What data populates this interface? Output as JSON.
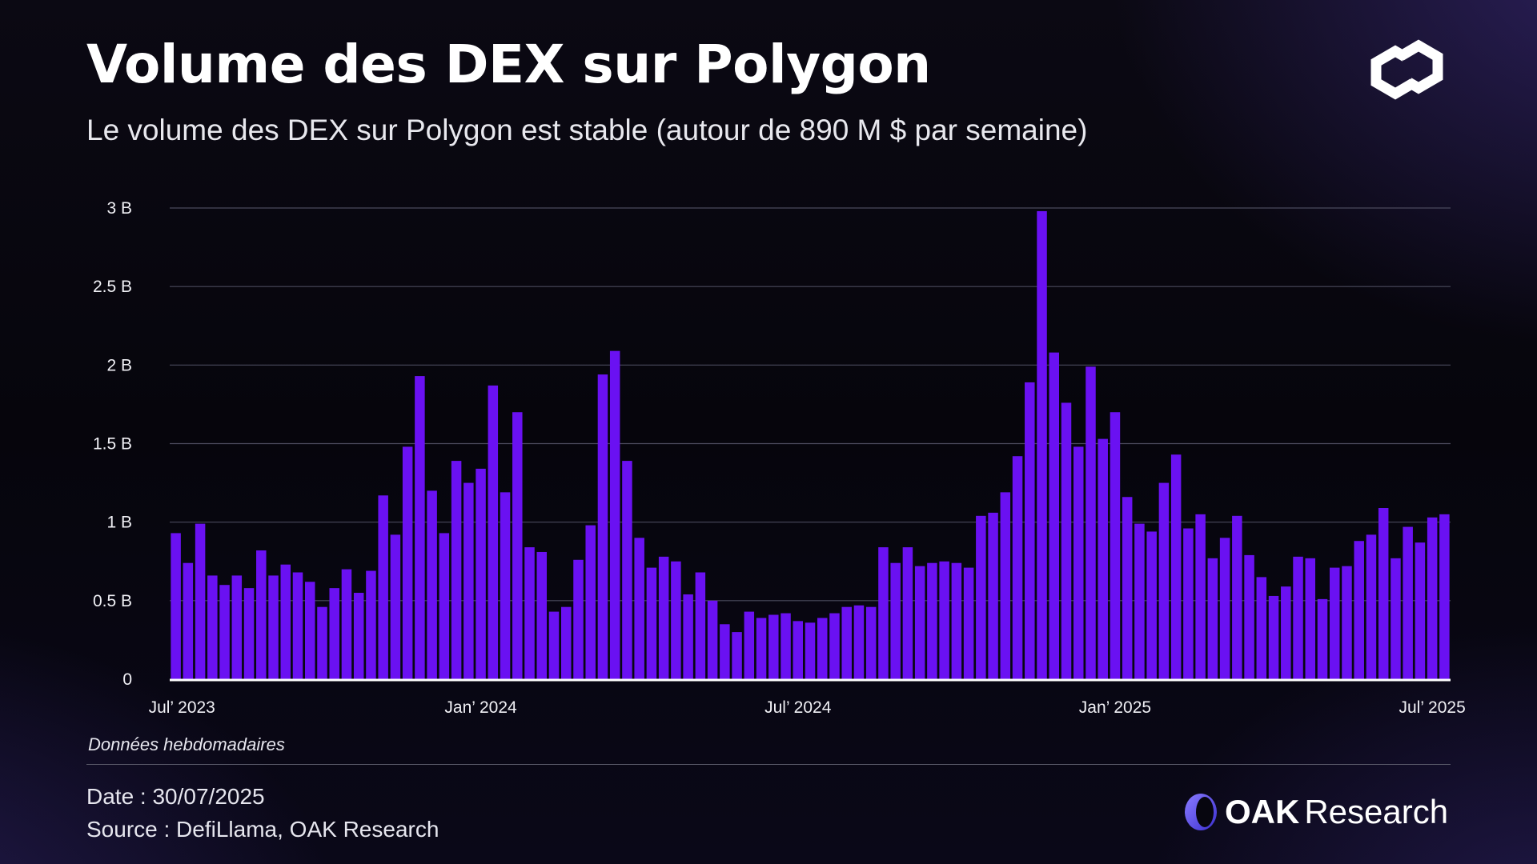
{
  "header": {
    "title": "Volume des DEX sur Polygon",
    "subtitle": "Le volume des DEX sur Polygon est stable (autour de 890 M $ par semaine)"
  },
  "caption": "Données hebdomadaires",
  "footer": {
    "date": "Date : 30/07/2025",
    "source": "Source : DefiLlama, OAK Research"
  },
  "brand": {
    "word1": "OAK",
    "word2": "Research"
  },
  "colors": {
    "bar": "#6a11f2",
    "grid": "#4a4a5c",
    "baseline": "#ffffff",
    "accent": "#6a5cf0"
  },
  "icons": {
    "top_right": "polygon-logo-icon",
    "brand": "oak-research-logo-icon"
  },
  "chart_data": {
    "type": "bar",
    "title": "Volume des DEX sur Polygon",
    "ylim": [
      0,
      3
    ],
    "y_unit": "B",
    "y_ticks": [
      {
        "value": 0,
        "label": "0"
      },
      {
        "value": 0.5,
        "label": "0.5 B"
      },
      {
        "value": 1,
        "label": "1 B"
      },
      {
        "value": 1.5,
        "label": "1.5 B"
      },
      {
        "value": 2,
        "label": "2 B"
      },
      {
        "value": 2.5,
        "label": "2.5 B"
      },
      {
        "value": 3,
        "label": "3 B"
      }
    ],
    "x_ticks": [
      {
        "index": 1,
        "label": "Jul’ 2023"
      },
      {
        "index": 25.5,
        "label": "Jan’ 2024"
      },
      {
        "index": 51.5,
        "label": "Jul’ 2024"
      },
      {
        "index": 77.5,
        "label": "Jan’ 2025"
      },
      {
        "index": 103.5,
        "label": "Jul’ 2025"
      }
    ],
    "grid": true,
    "values": [
      0.93,
      0.74,
      0.99,
      0.66,
      0.6,
      0.66,
      0.58,
      0.82,
      0.66,
      0.73,
      0.68,
      0.62,
      0.46,
      0.58,
      0.7,
      0.55,
      0.69,
      1.17,
      0.92,
      1.48,
      1.93,
      1.2,
      0.93,
      1.39,
      1.25,
      1.34,
      1.87,
      1.19,
      1.7,
      0.84,
      0.81,
      0.43,
      0.46,
      0.76,
      0.98,
      1.94,
      2.09,
      1.39,
      0.9,
      0.71,
      0.78,
      0.75,
      0.54,
      0.68,
      0.5,
      0.35,
      0.3,
      0.43,
      0.39,
      0.41,
      0.42,
      0.37,
      0.36,
      0.39,
      0.42,
      0.46,
      0.47,
      0.46,
      0.84,
      0.74,
      0.84,
      0.72,
      0.74,
      0.75,
      0.74,
      0.71,
      1.04,
      1.06,
      1.19,
      1.42,
      1.89,
      2.98,
      2.08,
      1.76,
      1.48,
      1.99,
      1.53,
      1.7,
      1.16,
      0.99,
      0.94,
      1.25,
      1.43,
      0.96,
      1.05,
      0.77,
      0.9,
      1.04,
      0.79,
      0.65,
      0.53,
      0.59,
      0.78,
      0.77,
      0.51,
      0.71,
      0.72,
      0.88,
      0.92,
      1.09,
      0.77,
      0.97,
      0.87,
      1.03,
      1.05
    ]
  }
}
